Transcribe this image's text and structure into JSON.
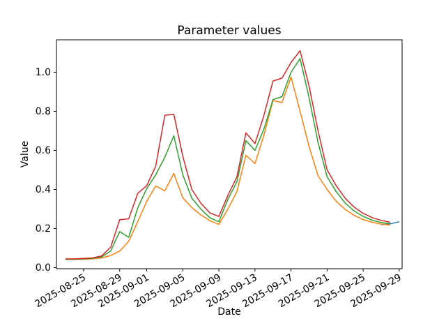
{
  "figure": {
    "background": "#ffffff",
    "text_color": "#000000",
    "spine_color": "#000000"
  },
  "chart_data": {
    "type": "line",
    "title": "Parameter values",
    "xlabel": "Date",
    "ylabel": "Value",
    "grid": false,
    "legend": null,
    "ylim": [
      -0.012,
      1.168
    ],
    "xlim": [
      "2025-08-22",
      "2025-09-29"
    ],
    "y_ticks": [
      {
        "value": 0.0,
        "label": "0.0"
      },
      {
        "value": 0.2,
        "label": "0.2"
      },
      {
        "value": 0.4,
        "label": "0.4"
      },
      {
        "value": 0.6,
        "label": "0.6"
      },
      {
        "value": 0.8,
        "label": "0.8"
      },
      {
        "value": 1.0,
        "label": "1.0"
      }
    ],
    "x_ticks": [
      {
        "date": "2025-08-25",
        "label": "2025-08-25"
      },
      {
        "date": "2025-08-29",
        "label": "2025-08-29"
      },
      {
        "date": "2025-09-01",
        "label": "2025-09-01"
      },
      {
        "date": "2025-09-05",
        "label": "2025-09-05"
      },
      {
        "date": "2025-09-09",
        "label": "2025-09-09"
      },
      {
        "date": "2025-09-13",
        "label": "2025-09-13"
      },
      {
        "date": "2025-09-17",
        "label": "2025-09-17"
      },
      {
        "date": "2025-09-21",
        "label": "2025-09-21"
      },
      {
        "date": "2025-09-25",
        "label": "2025-09-25"
      },
      {
        "date": "2025-09-29",
        "label": "2025-09-29"
      }
    ],
    "dates": [
      "2025-08-23",
      "2025-08-24",
      "2025-08-25",
      "2025-08-26",
      "2025-08-27",
      "2025-08-28",
      "2025-08-29",
      "2025-08-30",
      "2025-08-31",
      "2025-09-01",
      "2025-09-02",
      "2025-09-03",
      "2025-09-04",
      "2025-09-05",
      "2025-09-06",
      "2025-09-07",
      "2025-09-08",
      "2025-09-09",
      "2025-09-10",
      "2025-09-11",
      "2025-09-12",
      "2025-09-13",
      "2025-09-14",
      "2025-09-15",
      "2025-09-16",
      "2025-09-17",
      "2025-09-18",
      "2025-09-19",
      "2025-09-20",
      "2025-09-21",
      "2025-09-22",
      "2025-09-23",
      "2025-09-24",
      "2025-09-25",
      "2025-09-26",
      "2025-09-27",
      "2025-09-28"
    ],
    "series": [
      {
        "name": "series-blue",
        "color": "#1f77b4",
        "dates": [
          "2025-09-27",
          "2025-09-28",
          "2025-09-29"
        ],
        "values": [
          0.22,
          0.224,
          0.235
        ]
      },
      {
        "name": "series-orange",
        "color": "#ff7f0e",
        "values": [
          0.042,
          0.042,
          0.043,
          0.045,
          0.05,
          0.062,
          0.085,
          0.135,
          0.235,
          0.34,
          0.418,
          0.393,
          0.482,
          0.357,
          0.307,
          0.27,
          0.24,
          0.221,
          0.3,
          0.39,
          0.575,
          0.532,
          0.68,
          0.855,
          0.845,
          0.975,
          0.8,
          0.62,
          0.47,
          0.4,
          0.34,
          0.298,
          0.268,
          0.246,
          0.232,
          0.223,
          0.218
        ]
      },
      {
        "name": "series-green",
        "color": "#2ca02c",
        "values": [
          0.043,
          0.043,
          0.045,
          0.048,
          0.055,
          0.085,
          0.185,
          0.155,
          0.305,
          0.405,
          0.475,
          0.565,
          0.675,
          0.475,
          0.355,
          0.3,
          0.255,
          0.235,
          0.35,
          0.44,
          0.65,
          0.6,
          0.71,
          0.86,
          0.875,
          1.0,
          1.07,
          0.87,
          0.64,
          0.465,
          0.39,
          0.33,
          0.29,
          0.262,
          0.243,
          0.231,
          0.225
        ]
      },
      {
        "name": "series-red",
        "color": "#d62728",
        "values": [
          0.045,
          0.045,
          0.047,
          0.05,
          0.06,
          0.105,
          0.245,
          0.25,
          0.38,
          0.42,
          0.52,
          0.78,
          0.785,
          0.57,
          0.4,
          0.33,
          0.28,
          0.262,
          0.37,
          0.465,
          0.69,
          0.635,
          0.78,
          0.955,
          0.97,
          1.05,
          1.11,
          0.93,
          0.7,
          0.5,
          0.42,
          0.355,
          0.31,
          0.278,
          0.256,
          0.242,
          0.232
        ]
      }
    ]
  }
}
